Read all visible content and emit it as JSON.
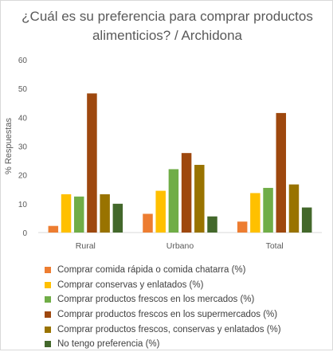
{
  "chart_data": {
    "type": "bar",
    "title": "¿Cuál es su preferencia para comprar productos alimenticios? / Archidona",
    "ylabel": "% Respuestas",
    "xlabel": "",
    "ylim": [
      0,
      60
    ],
    "yticks": [
      0,
      10,
      20,
      30,
      40,
      50,
      60
    ],
    "grid": false,
    "legend_position": "bottom",
    "categories": [
      "Rural",
      "Urbano",
      "Total"
    ],
    "series": [
      {
        "name": "Comprar comida rápida o comida chatarra (%)",
        "color": "#ED7D31",
        "values": [
          2.3,
          6.5,
          3.8
        ]
      },
      {
        "name": "Comprar conservas y enlatados (%)",
        "color": "#FFC000",
        "values": [
          13.3,
          14.5,
          13.7
        ]
      },
      {
        "name": "Comprar productos frescos en los mercados (%)",
        "color": "#70AD47",
        "values": [
          12.5,
          22.0,
          15.5
        ]
      },
      {
        "name": "Comprar productos frescos en los supermercados (%)",
        "color": "#9E480E",
        "values": [
          48.3,
          27.6,
          41.5
        ]
      },
      {
        "name": "Comprar productos frescos, conservas y enlatados (%)",
        "color": "#997300",
        "values": [
          13.3,
          23.5,
          16.7
        ]
      },
      {
        "name": "No tengo preferencia (%)",
        "color": "#43682B",
        "values": [
          10.0,
          5.6,
          8.7
        ]
      }
    ]
  }
}
